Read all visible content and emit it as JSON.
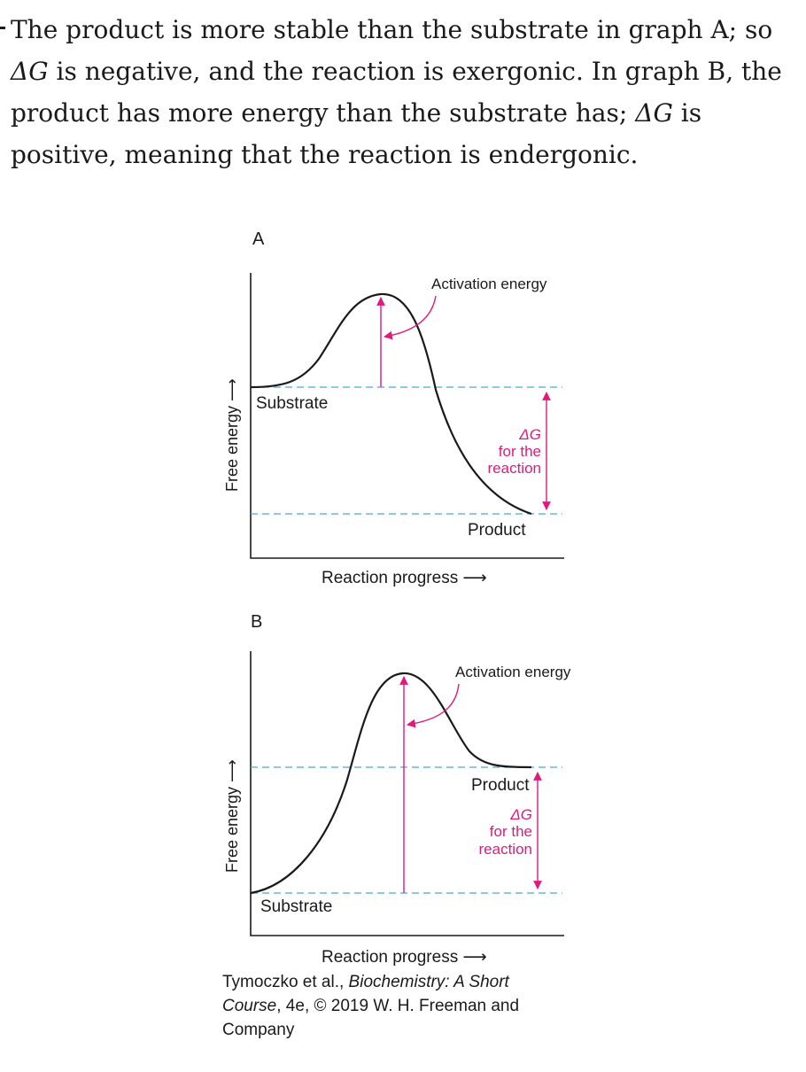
{
  "explanation": {
    "p1": "The product is more stable than the substrate in graph A; so ",
    "dg1": "ΔG",
    "p2": " is negative, and the reaction is exergonic. In graph B, the product has more energy than the substrate has; ",
    "dg2": "ΔG",
    "p3": " is positive, meaning that the reaction is endergonic."
  },
  "graph_a": {
    "panel_label": "A",
    "y_axis_label": "Free energy ⟶",
    "x_axis_label": "Reaction progress ⟶",
    "activation_label": "Activation energy",
    "substrate_label": "Substrate",
    "product_label": "Product",
    "delta_g_symbol": "ΔG",
    "delta_g_line1": "for the",
    "delta_g_line2": "reaction"
  },
  "graph_b": {
    "panel_label": "B",
    "y_axis_label": "Free energy ⟶",
    "x_axis_label": "Reaction progress ⟶",
    "activation_label": "Activation energy",
    "substrate_label": "Substrate",
    "product_label": "Product",
    "delta_g_symbol": "ΔG",
    "delta_g_line1": "for the",
    "delta_g_line2": "reaction"
  },
  "credit": {
    "authors": "Tymoczko et al., ",
    "book_title": "Biochemistry: A Short Course",
    "rest": ", 4e, © 2019 W. H. Freeman and Company"
  },
  "colors": {
    "curve": "#1a1a1a",
    "accent_pink": "#e0197d",
    "dashed_blue": "#4aa8d8"
  }
}
